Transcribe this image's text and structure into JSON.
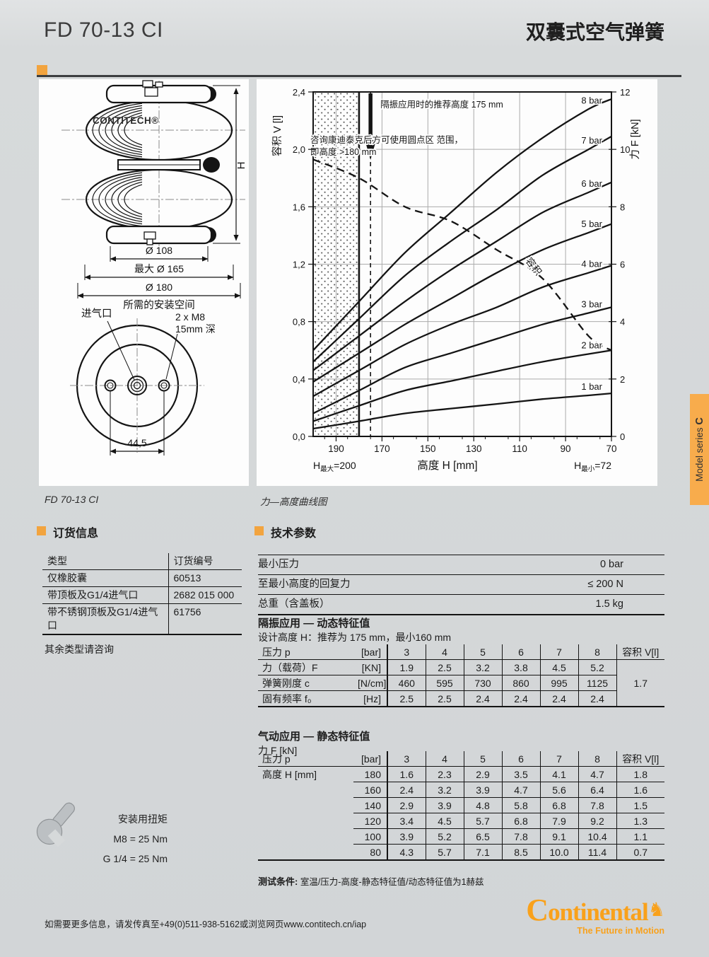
{
  "header": {
    "product": "FD 70-13 CI",
    "title": "双囊式空气弹簧"
  },
  "sidebar_tab": {
    "text": "Model series ",
    "bold": "C"
  },
  "drawing": {
    "logo": "CONTITECH®",
    "height_dim": "H",
    "dia_bead": "Ø 108",
    "dia_max": "最大 Ø 165",
    "dia_install": "Ø 180",
    "install_space": "所需的安装空间",
    "air_inlet": "进气口",
    "bolt_spec_1": "2 x M8",
    "bolt_spec_2": "15mm 深",
    "hole_spacing": "44,5",
    "caption": "FD 70-13 CI"
  },
  "chart_caption": "力—高度曲线图",
  "chart_data": {
    "type": "line",
    "title": "力—高度曲线图",
    "xlabel": "高度 H [mm]",
    "ylabel_left": "容积 V [l]",
    "ylabel_right": "力 F [kN]",
    "xlim": [
      200,
      70
    ],
    "x_reversed": true,
    "ylim_left": [
      0,
      2.4
    ],
    "ylim_right": [
      0,
      12
    ],
    "x_ticks": [
      190,
      170,
      150,
      130,
      110,
      90,
      70
    ],
    "y_ticks_left": [
      0,
      0.4,
      0.8,
      1.2,
      1.6,
      2.0,
      2.4
    ],
    "y_ticks_right": [
      0,
      2,
      4,
      6,
      8,
      10,
      12
    ],
    "grid": true,
    "x": [
      200,
      180,
      160,
      140,
      120,
      100,
      80,
      70
    ],
    "series": [
      {
        "name": "1 bar",
        "axis": "right",
        "style": "solid",
        "values": [
          0.27,
          0.53,
          0.8,
          0.97,
          1.13,
          1.3,
          1.43,
          1.5
        ]
      },
      {
        "name": "2 bar",
        "axis": "right",
        "style": "solid",
        "values": [
          0.53,
          1.07,
          1.6,
          1.93,
          2.27,
          2.6,
          2.87,
          3.0
        ]
      },
      {
        "name": "3 bar",
        "axis": "right",
        "style": "solid",
        "values": [
          0.8,
          1.6,
          2.4,
          2.9,
          3.4,
          3.9,
          4.3,
          4.5
        ]
      },
      {
        "name": "4 bar",
        "axis": "right",
        "style": "solid",
        "values": [
          1.4,
          2.3,
          3.2,
          3.9,
          4.5,
          5.2,
          5.7,
          5.95
        ]
      },
      {
        "name": "5 bar",
        "axis": "right",
        "style": "solid",
        "values": [
          1.9,
          2.9,
          3.9,
          4.8,
          5.7,
          6.5,
          7.1,
          7.4
        ]
      },
      {
        "name": "6 bar",
        "axis": "right",
        "style": "solid",
        "values": [
          2.3,
          3.5,
          4.7,
          5.8,
          6.8,
          7.8,
          8.5,
          8.85
        ]
      },
      {
        "name": "7 bar",
        "axis": "right",
        "style": "solid",
        "values": [
          2.6,
          4.1,
          5.6,
          6.8,
          7.9,
          9.1,
          10.0,
          10.45
        ]
      },
      {
        "name": "8 bar",
        "axis": "right",
        "style": "solid",
        "values": [
          3.0,
          4.7,
          6.4,
          7.8,
          9.2,
          10.4,
          11.4,
          11.75
        ]
      },
      {
        "name": "容积",
        "axis": "left",
        "style": "dashed",
        "values": [
          1.93,
          1.8,
          1.6,
          1.5,
          1.3,
          1.1,
          0.7,
          0.6
        ]
      }
    ],
    "annotations": {
      "recommended": "隔振应用时的推荐高度  175 mm",
      "consult_line1": "咨询康迪泰克后方可使用圆点区 范围，",
      "consult_line2": "即高度  >180 mm"
    },
    "recommended_height_mm": 175,
    "consult_boundary_mm": 180,
    "h_max": {
      "pre": "H",
      "sub": "最大",
      "post": "=200"
    },
    "h_min": {
      "pre": "H",
      "sub": "最小",
      "post": "=72"
    }
  },
  "ordering": {
    "heading": "订货信息",
    "col_headers": [
      "类型",
      "订货编号"
    ],
    "rows": [
      [
        "仅橡胶囊",
        "60513"
      ],
      [
        "带顶板及G1/4进气口",
        "2682 015 000"
      ],
      [
        "带不锈钢顶板及G1/4进气口",
        "61756"
      ]
    ],
    "note": "其余类型请咨询"
  },
  "tech": {
    "heading": "技术参数",
    "rows": [
      [
        "最小压力",
        "0 bar"
      ],
      [
        "至最小高度的回复力",
        "≤ 200 N"
      ],
      [
        "总重（含盖板）",
        "1.5 kg"
      ]
    ],
    "dynamic": {
      "title": "隔振应用 — 动态特征值",
      "subtitle": "设计高度 H：推荐为 175 mm，最小160 mm",
      "pressure_label": "压力 p",
      "pressure_unit": "[bar]",
      "pressures": [
        "3",
        "4",
        "5",
        "6",
        "7",
        "8"
      ],
      "volume_header": "容积 V[l]",
      "rows": [
        {
          "label": "力（载荷）F",
          "unit": "[KN]",
          "values": [
            "1.9",
            "2.5",
            "3.2",
            "3.8",
            "4.5",
            "5.2"
          ]
        },
        {
          "label": "弹簧刚度 c",
          "unit": "[N/cm]",
          "values": [
            "460",
            "595",
            "730",
            "860",
            "995",
            "1125"
          ]
        },
        {
          "label": "固有频率 f₀",
          "unit": "[Hz]",
          "values": [
            "2.5",
            "2.5",
            "2.4",
            "2.4",
            "2.4",
            "2.4"
          ]
        }
      ],
      "volume_value": "1.7"
    },
    "static": {
      "title": "气动应用 — 静态特征值",
      "force_label": "力 F [kN]",
      "pressure_label": "压力 p",
      "pressure_unit": "[bar]",
      "pressures": [
        "3",
        "4",
        "5",
        "6",
        "7",
        "8"
      ],
      "volume_header": "容积 V[l]",
      "height_label": "高度 H [mm]",
      "rows": [
        {
          "height": "180",
          "values": [
            "1.6",
            "2.3",
            "2.9",
            "3.5",
            "4.1",
            "4.7"
          ],
          "volume": "1.8"
        },
        {
          "height": "160",
          "values": [
            "2.4",
            "3.2",
            "3.9",
            "4.7",
            "5.6",
            "6.4"
          ],
          "volume": "1.6"
        },
        {
          "height": "140",
          "values": [
            "2.9",
            "3.9",
            "4.8",
            "5.8",
            "6.8",
            "7.8"
          ],
          "volume": "1.5"
        },
        {
          "height": "120",
          "values": [
            "3.4",
            "4.5",
            "5.7",
            "6.8",
            "7.9",
            "9.2"
          ],
          "volume": "1.3"
        },
        {
          "height": "100",
          "values": [
            "3.9",
            "5.2",
            "6.5",
            "7.8",
            "9.1",
            "10.4"
          ],
          "volume": "1.1"
        },
        {
          "height": "80",
          "values": [
            "4.3",
            "5.7",
            "7.1",
            "8.5",
            "10.0",
            "11.4"
          ],
          "volume": "0.7"
        }
      ]
    }
  },
  "test": {
    "label": "测试条件:",
    "text": " 室温/压力-高度-静态特征值/动态特征值为1赫兹"
  },
  "torque": {
    "title": "安装用扭矩",
    "lines": [
      "M8 = 25  Nm",
      "G 1/4 = 25  Nm"
    ]
  },
  "footer": {
    "info": "如需要更多信息，请发传真至+49(0)511-938-5162或浏览网页www.contitech.cn/iap",
    "brand_first": "C",
    "brand_rest": "ontinental",
    "tagline": "The Future in Motion"
  },
  "colors": {
    "accent": "#F2A43F",
    "tab": "#F8AC4C",
    "logo": "#F9A11B",
    "page_bg": "#D6D9DA",
    "panel": "#FDFDFD",
    "line": "#141414",
    "grid": "#ABABAB"
  }
}
